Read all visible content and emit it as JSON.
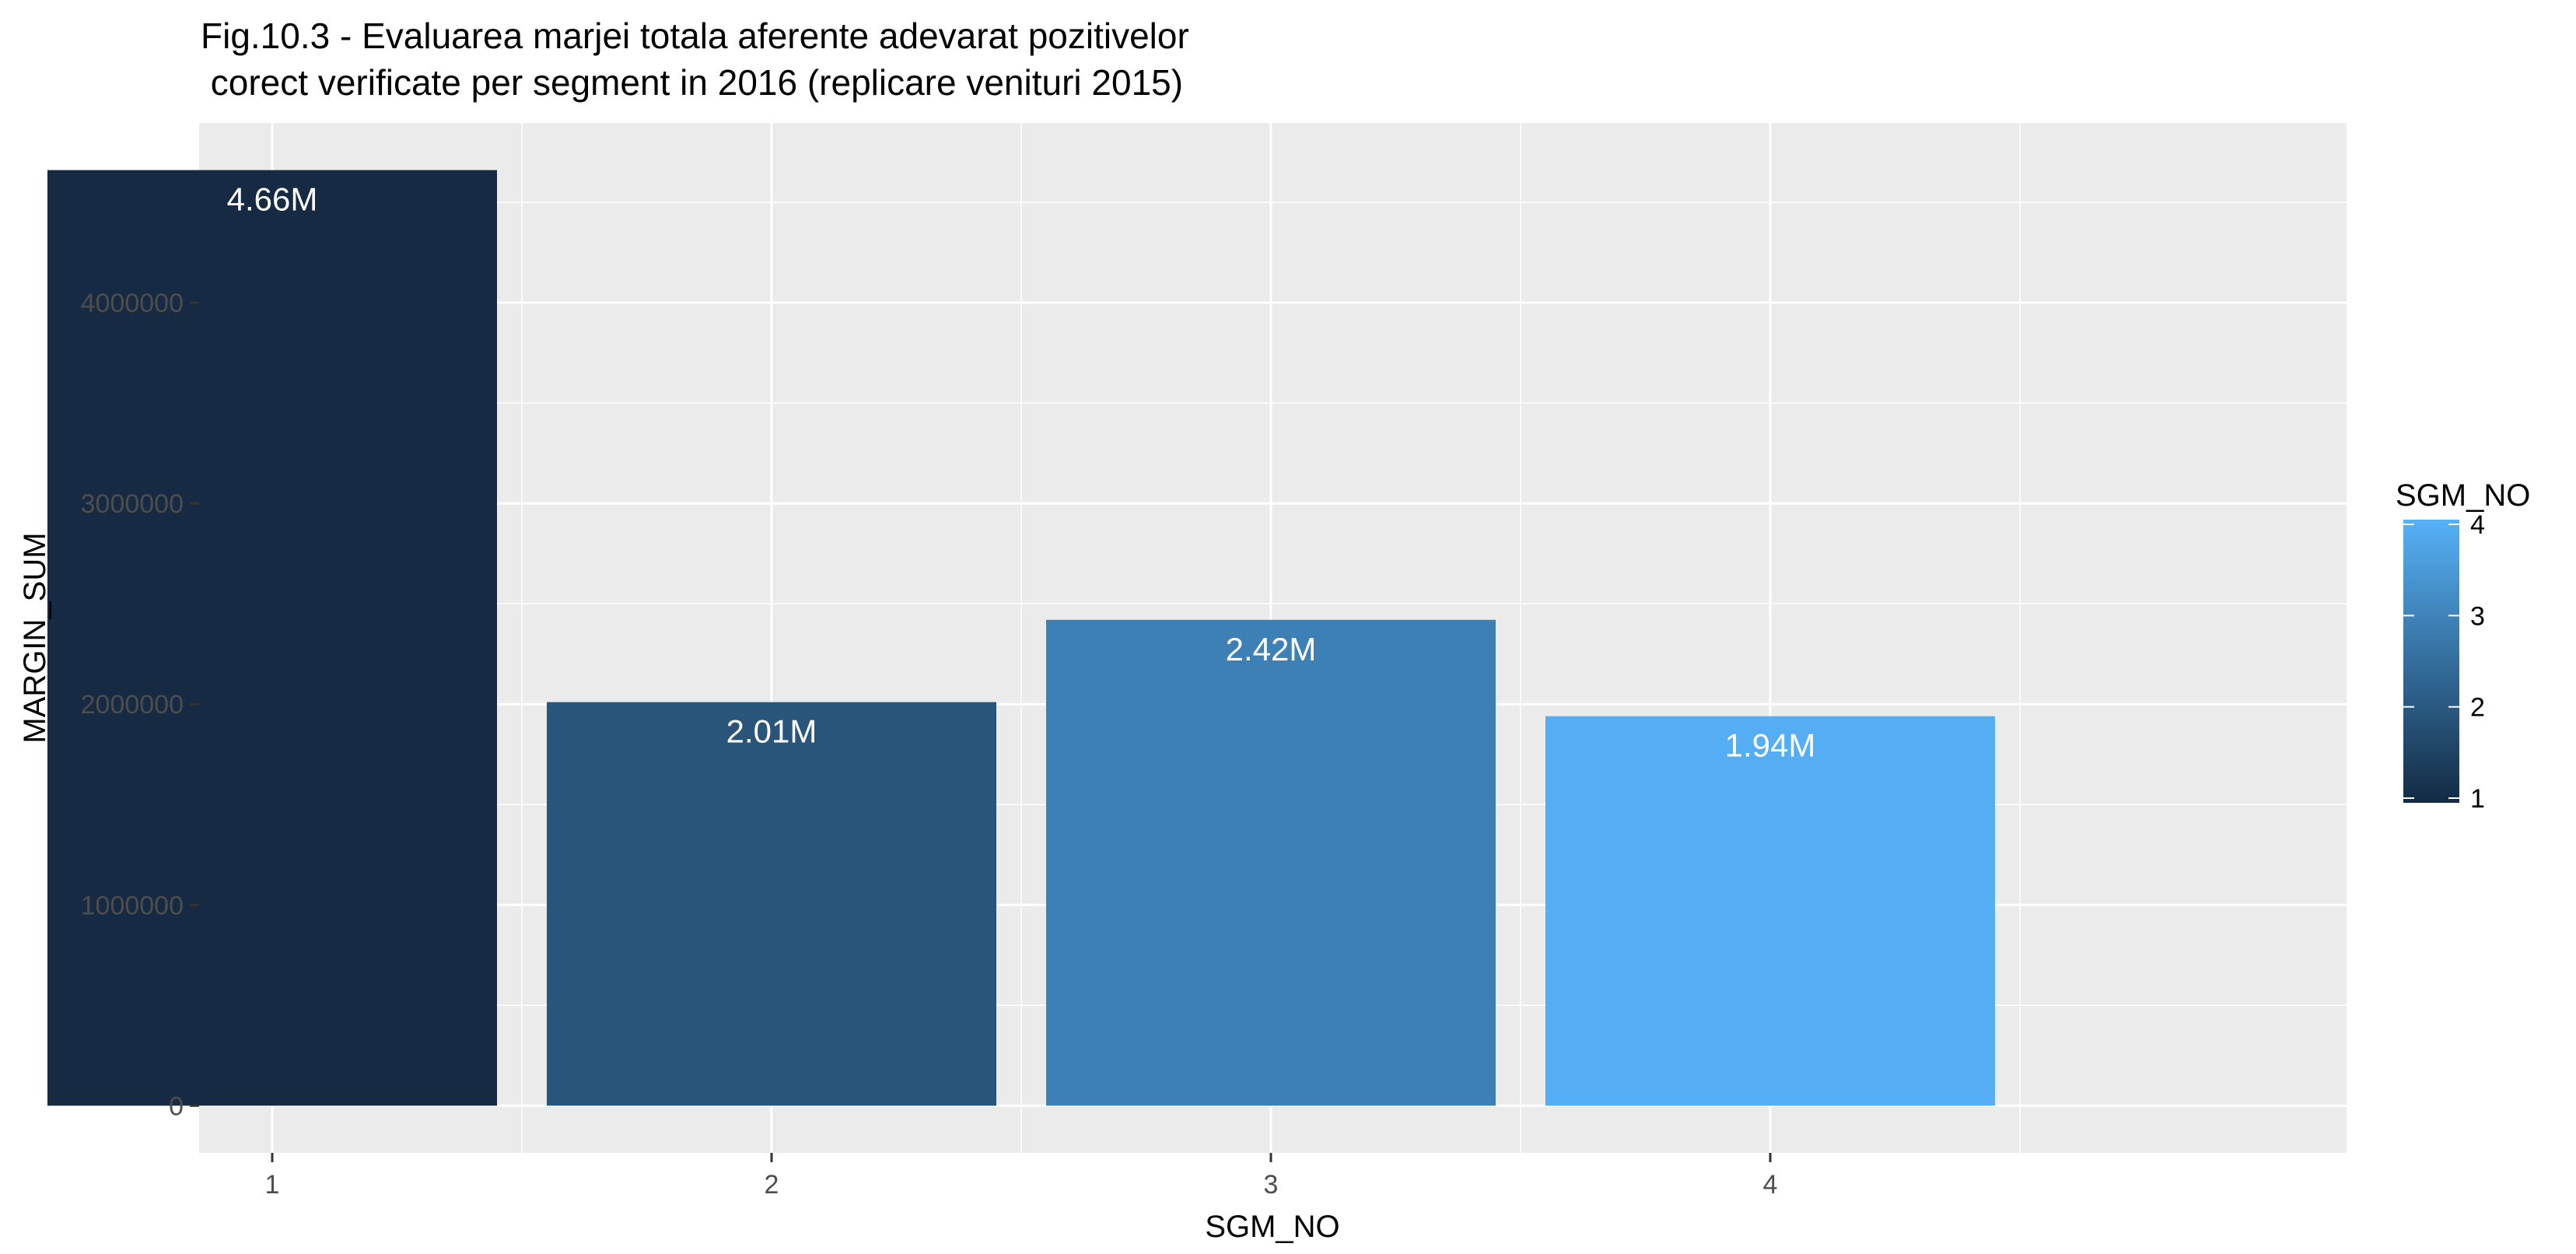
{
  "chart_data": {
    "type": "bar",
    "title_lines": [
      "Fig.10.3 - Evaluarea marjei totala aferente adevarat pozitivelor",
      " corect verificate per segment in 2016 (replicare venituri 2015)"
    ],
    "xlabel": "SGM_NO",
    "ylabel": "MARGIN_SUM",
    "categories": [
      "1",
      "2",
      "3",
      "4"
    ],
    "values": [
      4660000,
      2010000,
      2420000,
      1940000
    ],
    "data_labels": [
      "4.66M",
      "2.01M",
      "2.42M",
      "1.94M"
    ],
    "bar_colors": [
      "#162B43",
      "#29557B",
      "#3C80B6",
      "#55AEF3"
    ],
    "ylim": [
      -235000,
      4895000
    ],
    "y_ticks": [
      0,
      1000000,
      2000000,
      3000000,
      4000000
    ],
    "y_tick_labels": [
      "0",
      "1000000",
      "2000000",
      "3000000",
      "4000000"
    ],
    "grid": true,
    "panel_background": "#EBEBEB",
    "legend": {
      "title": "SGM_NO",
      "placement": "right",
      "type": "colorbar",
      "labels": [
        "1",
        "2",
        "3",
        "4"
      ],
      "range": [
        1,
        4
      ],
      "colors": [
        "#132B43",
        "#56B1F7"
      ]
    }
  }
}
